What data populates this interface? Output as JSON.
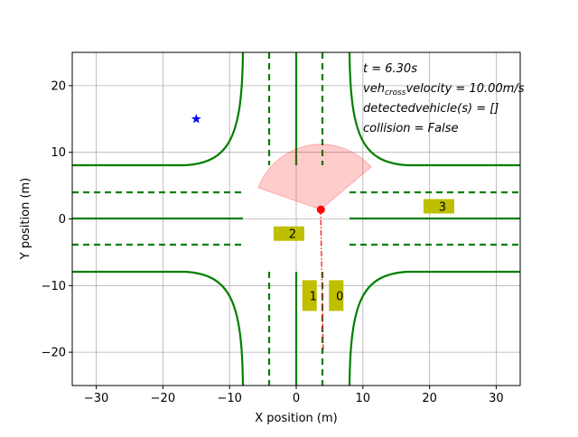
{
  "chart_data": {
    "type": "scatter",
    "xlabel": "X position (m)",
    "ylabel": "Y position (m)",
    "xlim": [
      -33.6,
      33.6
    ],
    "ylim": [
      -25,
      25
    ],
    "xticks": [
      {
        "value": -30,
        "label": "−30"
      },
      {
        "value": -20,
        "label": "−20"
      },
      {
        "value": -10,
        "label": "−10"
      },
      0,
      10,
      20,
      30
    ],
    "yticks": [
      {
        "value": -20,
        "label": "−20"
      },
      {
        "value": -10,
        "label": "−10"
      },
      0,
      10,
      20
    ],
    "grid": true,
    "target": {
      "x": -15,
      "y": 15,
      "color": "#0000ff"
    },
    "ego": {
      "x": 3.7,
      "y": 1.4,
      "color": "#ff0000"
    },
    "vehicles": [
      {
        "label": "0",
        "x": 6.0,
        "y": -11.5,
        "orientation": "vertical"
      },
      {
        "label": "1",
        "x": 2.0,
        "y": -11.5,
        "orientation": "vertical"
      },
      {
        "label": "2",
        "x": -1.1,
        "y": -2.2,
        "orientation": "horizontal"
      },
      {
        "label": "3",
        "x": 21.4,
        "y": 1.9,
        "orientation": "horizontal"
      }
    ],
    "vehicle_color": "#bfbf00",
    "annotations": [
      [
        "t = 6.30s"
      ],
      [
        "veh",
        "cross",
        "velocity = 10.00m/s"
      ],
      [
        "detectedvehicle(s) = []"
      ],
      [
        "collision = False"
      ]
    ]
  }
}
